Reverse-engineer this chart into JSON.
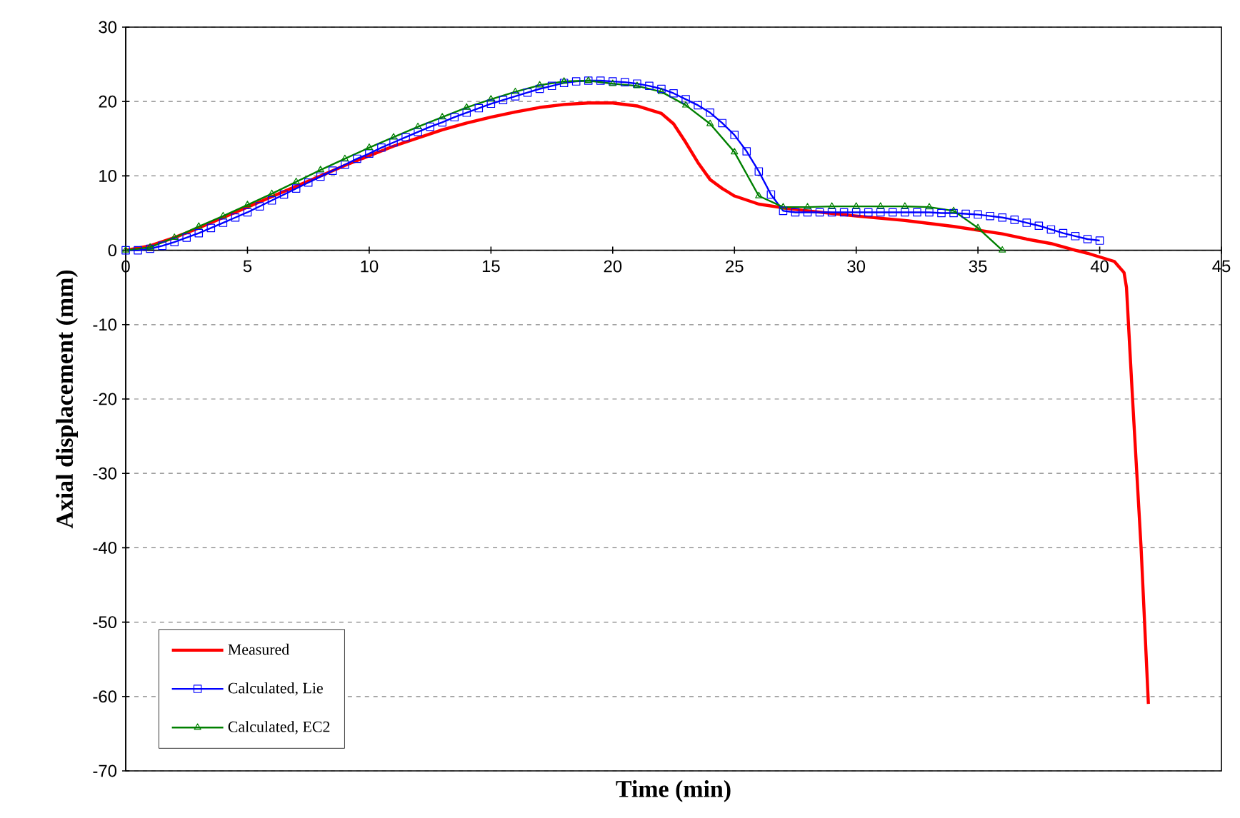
{
  "chart_data": {
    "type": "line",
    "xlabel": "Time (min)",
    "ylabel": "Axial displacement (mm)",
    "xlim": [
      0,
      45
    ],
    "ylim": [
      -70,
      30
    ],
    "xticks": [
      0,
      5,
      10,
      15,
      20,
      25,
      30,
      35,
      40,
      45
    ],
    "yticks": [
      -70,
      -60,
      -50,
      -40,
      -30,
      -20,
      -10,
      0,
      10,
      20,
      30
    ],
    "grid": "y",
    "legend": "bottom left",
    "series": [
      {
        "name": "Measured",
        "color": "#ff0000",
        "marker": "none",
        "x": [
          0,
          1,
          2,
          3,
          4,
          5,
          6,
          7,
          8,
          9,
          10,
          11,
          12,
          13,
          14,
          15,
          16,
          17,
          18,
          19,
          20,
          21,
          22,
          22.5,
          23,
          23.5,
          24,
          24.5,
          25,
          26,
          27,
          28,
          30,
          32,
          34,
          36,
          37,
          38,
          39,
          39.5,
          40,
          40.6,
          41,
          41.1,
          41.35,
          41.7,
          42
        ],
        "values": [
          0,
          0.6,
          1.7,
          3.0,
          4.4,
          5.8,
          7.2,
          8.6,
          10.0,
          11.4,
          12.7,
          14.0,
          15.1,
          16.2,
          17.1,
          17.9,
          18.6,
          19.2,
          19.6,
          19.8,
          19.8,
          19.4,
          18.4,
          17.0,
          14.5,
          11.8,
          9.5,
          8.3,
          7.3,
          6.2,
          5.7,
          5.3,
          4.6,
          4.0,
          3.2,
          2.2,
          1.5,
          0.9,
          0,
          -0.4,
          -0.9,
          -1.5,
          -3,
          -5,
          -20,
          -40,
          -61
        ]
      },
      {
        "name": "Calculated, Lie",
        "color": "#0000ff",
        "marker": "square",
        "x": [
          0,
          0.5,
          1,
          1.5,
          2,
          2.5,
          3,
          3.5,
          4,
          4.5,
          5,
          5.5,
          6,
          6.5,
          7,
          7.5,
          8,
          8.5,
          9,
          9.5,
          10,
          10.5,
          11,
          11.5,
          12,
          12.5,
          13,
          13.5,
          14,
          14.5,
          15,
          15.5,
          16,
          16.5,
          17,
          17.5,
          18,
          18.5,
          19,
          19.5,
          20,
          20.5,
          21,
          21.5,
          22,
          22.5,
          23,
          23.5,
          24,
          24.5,
          25,
          25.5,
          26,
          26.5,
          27,
          27.5,
          28,
          28.5,
          29,
          29.5,
          30,
          30.5,
          31,
          31.5,
          32,
          32.5,
          33,
          33.5,
          34,
          34.5,
          35,
          35.5,
          36,
          36.5,
          37,
          37.5,
          38,
          38.5,
          39,
          39.5,
          40
        ],
        "values": [
          0,
          0,
          0.2,
          0.6,
          1.1,
          1.7,
          2.3,
          3.0,
          3.7,
          4.4,
          5.1,
          5.9,
          6.7,
          7.5,
          8.3,
          9.1,
          9.9,
          10.7,
          11.5,
          12.3,
          13.0,
          13.8,
          14.5,
          15.2,
          15.9,
          16.6,
          17.2,
          17.9,
          18.5,
          19.1,
          19.7,
          20.2,
          20.7,
          21.2,
          21.7,
          22.1,
          22.5,
          22.7,
          22.8,
          22.8,
          22.7,
          22.6,
          22.4,
          22.1,
          21.7,
          21.1,
          20.3,
          19.5,
          18.5,
          17.1,
          15.5,
          13.3,
          10.6,
          7.5,
          5.3,
          5.1,
          5.1,
          5.1,
          5.1,
          5.1,
          5.1,
          5.1,
          5.1,
          5.1,
          5.1,
          5.1,
          5.1,
          5.0,
          5.0,
          4.9,
          4.8,
          4.6,
          4.4,
          4.1,
          3.7,
          3.3,
          2.8,
          2.3,
          1.9,
          1.5,
          1.3
        ]
      },
      {
        "name": "Calculated, EC2",
        "color": "#008000",
        "marker": "triangle",
        "x": [
          0,
          1,
          2,
          3,
          4,
          5,
          6,
          7,
          8,
          9,
          10,
          11,
          12,
          13,
          14,
          15,
          16,
          17,
          18,
          19,
          20,
          21,
          22,
          23,
          24,
          25,
          26,
          27,
          28,
          29,
          30,
          31,
          32,
          33,
          34,
          35,
          36
        ],
        "values": [
          0,
          0.4,
          1.7,
          3.2,
          4.6,
          6.1,
          7.6,
          9.2,
          10.8,
          12.3,
          13.8,
          15.2,
          16.6,
          17.9,
          19.2,
          20.3,
          21.3,
          22.2,
          22.7,
          22.8,
          22.4,
          22.1,
          21.3,
          19.5,
          17.0,
          13.2,
          7.3,
          5.8,
          5.8,
          5.9,
          5.9,
          5.9,
          5.9,
          5.8,
          5.3,
          3.0,
          0
        ]
      }
    ]
  }
}
